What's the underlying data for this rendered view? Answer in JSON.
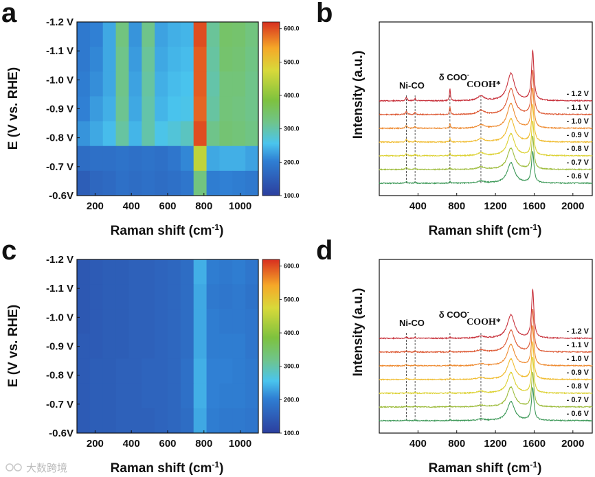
{
  "watermark": "大数跨境",
  "panels": [
    {
      "id": "a",
      "label": "a",
      "chart_data": {
        "type": "heatmap",
        "xlabel": "Raman shift (cm-1)",
        "ylabel": "E (V vs. RHE)",
        "xlim": [
          100,
          1100
        ],
        "x_ticks": [
          200,
          400,
          600,
          800,
          1000
        ],
        "y_ticks": [
          "-1.2 V",
          "-1.1 V",
          "-1.0 V",
          "-0.9 V",
          "-0.8 V",
          "-0.7 V",
          "-0.6V"
        ],
        "colorbar_range": [
          100,
          620
        ],
        "colorbar_ticks": [
          "600.0",
          "500.0",
          "400.0",
          "300.0",
          "200.0",
          "100.0"
        ],
        "potentials": [
          -1.2,
          -1.1,
          -1.0,
          -0.9,
          -0.8,
          -0.7,
          -0.6
        ],
        "intensity_rows": [
          [
            195,
            205,
            235,
            330,
            220,
            320,
            230,
            240,
            245,
            600,
            310,
            350,
            345,
            330
          ],
          [
            195,
            210,
            235,
            320,
            225,
            310,
            235,
            245,
            250,
            590,
            305,
            345,
            340,
            325
          ],
          [
            200,
            215,
            235,
            320,
            230,
            305,
            240,
            250,
            255,
            590,
            300,
            335,
            335,
            320
          ],
          [
            205,
            225,
            240,
            315,
            235,
            300,
            245,
            255,
            260,
            585,
            305,
            335,
            330,
            320
          ],
          [
            220,
            235,
            250,
            305,
            245,
            300,
            260,
            270,
            285,
            600,
            320,
            340,
            335,
            325
          ],
          [
            175,
            180,
            180,
            185,
            180,
            185,
            180,
            190,
            210,
            450,
            235,
            240,
            240,
            230
          ],
          [
            150,
            165,
            170,
            180,
            175,
            180,
            175,
            180,
            190,
            330,
            200,
            205,
            200,
            195
          ]
        ]
      }
    },
    {
      "id": "b",
      "label": "b",
      "chart_data": {
        "type": "line",
        "xlabel": "Raman shift (cm-1)",
        "ylabel": "Intensity (a.u.)",
        "xlim": [
          0,
          2200
        ],
        "x_ticks": [
          400,
          800,
          1200,
          1600,
          2000
        ],
        "series": [
          {
            "name": "- 1.2 V",
            "color": "#c8323c",
            "offset": 6,
            "peaks": [
              [
                280,
                0.25
              ],
              [
                370,
                0.15
              ],
              [
                730,
                0.9
              ],
              [
                1050,
                0.35
              ],
              [
                1360,
                2.0
              ],
              [
                1585,
                3.6
              ]
            ]
          },
          {
            "name": "- 1.1 V",
            "color": "#dd5a35",
            "offset": 5,
            "peaks": [
              [
                280,
                0.22
              ],
              [
                370,
                0.13
              ],
              [
                730,
                0.55
              ],
              [
                1050,
                0.3
              ],
              [
                1360,
                1.9
              ],
              [
                1585,
                3.2
              ]
            ]
          },
          {
            "name": "- 1.0 V",
            "color": "#ee8a30",
            "offset": 4,
            "peaks": [
              [
                280,
                0.2
              ],
              [
                370,
                0.12
              ],
              [
                730,
                0.35
              ],
              [
                1050,
                0.25
              ],
              [
                1360,
                1.8
              ],
              [
                1585,
                2.9
              ]
            ]
          },
          {
            "name": "- 0.9 V",
            "color": "#f0bc30",
            "offset": 3,
            "peaks": [
              [
                280,
                0.18
              ],
              [
                370,
                0.1
              ],
              [
                730,
                0.25
              ],
              [
                1050,
                0.22
              ],
              [
                1360,
                1.7
              ],
              [
                1585,
                2.7
              ]
            ]
          },
          {
            "name": "- 0.8 V",
            "color": "#dcd132",
            "offset": 2,
            "peaks": [
              [
                280,
                0.16
              ],
              [
                370,
                0.1
              ],
              [
                730,
                0.2
              ],
              [
                1050,
                0.2
              ],
              [
                1360,
                1.6
              ],
              [
                1585,
                2.5
              ]
            ]
          },
          {
            "name": "- 0.7 V",
            "color": "#9dbc3c",
            "offset": 1,
            "peaks": [
              [
                280,
                0.14
              ],
              [
                370,
                0.08
              ],
              [
                730,
                0.15
              ],
              [
                1050,
                0.18
              ],
              [
                1360,
                1.55
              ],
              [
                1585,
                2.4
              ]
            ]
          },
          {
            "name": "- 0.6 V",
            "color": "#3f9a5a",
            "offset": 0,
            "peaks": [
              [
                280,
                0.12
              ],
              [
                370,
                0.07
              ],
              [
                730,
                0.12
              ],
              [
                1050,
                0.15
              ],
              [
                1360,
                1.5
              ],
              [
                1585,
                2.3
              ]
            ]
          }
        ],
        "annotations": [
          {
            "text": "Ni-CO",
            "x": 280
          },
          {
            "text": "δ COO",
            "sup": "-",
            "x": 730
          },
          {
            "text": "COOH*",
            "x": 1050
          }
        ]
      }
    },
    {
      "id": "c",
      "label": "c",
      "chart_data": {
        "type": "heatmap",
        "xlabel": "Raman shift (cm-1)",
        "ylabel": "E (V vs. RHE)",
        "xlim": [
          100,
          1100
        ],
        "x_ticks": [
          200,
          400,
          600,
          800,
          1000
        ],
        "y_ticks": [
          "-1.2 V",
          "-1.1 V",
          "-1.0 V",
          "-0.9 V",
          "-0.8 V",
          "-0.7 V",
          "-0.6V"
        ],
        "colorbar_range": [
          100,
          620
        ],
        "colorbar_ticks": [
          "600.0",
          "500.0",
          "400.0",
          "300.0",
          "200.0",
          "100.0"
        ],
        "potentials": [
          -1.2,
          -1.1,
          -1.0,
          -0.9,
          -0.8,
          -0.7,
          -0.6
        ],
        "intensity_rows": [
          [
            140,
            145,
            150,
            150,
            155,
            155,
            160,
            165,
            175,
            240,
            200,
            195,
            200,
            190
          ],
          [
            140,
            145,
            150,
            150,
            155,
            155,
            160,
            165,
            175,
            235,
            195,
            190,
            195,
            185
          ],
          [
            140,
            145,
            150,
            150,
            155,
            155,
            160,
            165,
            175,
            235,
            200,
            195,
            195,
            190
          ],
          [
            145,
            145,
            150,
            150,
            155,
            155,
            160,
            165,
            175,
            235,
            200,
            200,
            200,
            190
          ],
          [
            145,
            150,
            150,
            155,
            155,
            160,
            160,
            165,
            180,
            240,
            205,
            205,
            200,
            195
          ],
          [
            145,
            150,
            150,
            155,
            155,
            160,
            160,
            165,
            180,
            240,
            205,
            200,
            200,
            195
          ],
          [
            145,
            150,
            150,
            155,
            155,
            155,
            160,
            165,
            175,
            235,
            200,
            195,
            195,
            190
          ]
        ]
      }
    },
    {
      "id": "d",
      "label": "d",
      "chart_data": {
        "type": "line",
        "xlabel": "Raman shift (cm-1)",
        "ylabel": "Intensity (a.u.)",
        "xlim": [
          0,
          2200
        ],
        "x_ticks": [
          400,
          800,
          1200,
          1600,
          2000
        ],
        "series": [
          {
            "name": "- 1.2 V",
            "color": "#c8323c",
            "offset": 6,
            "peaks": [
              [
                280,
                0.08
              ],
              [
                370,
                0.06
              ],
              [
                730,
                0.1
              ],
              [
                1050,
                0.15
              ],
              [
                1360,
                1.7
              ],
              [
                1585,
                3.5
              ]
            ]
          },
          {
            "name": "- 1.1 V",
            "color": "#dd5a35",
            "offset": 5,
            "peaks": [
              [
                280,
                0.08
              ],
              [
                370,
                0.06
              ],
              [
                730,
                0.1
              ],
              [
                1050,
                0.15
              ],
              [
                1360,
                1.6
              ],
              [
                1585,
                3.1
              ]
            ]
          },
          {
            "name": "- 1.0 V",
            "color": "#ee8a30",
            "offset": 4,
            "peaks": [
              [
                280,
                0.07
              ],
              [
                370,
                0.05
              ],
              [
                730,
                0.09
              ],
              [
                1050,
                0.14
              ],
              [
                1360,
                1.55
              ],
              [
                1585,
                2.9
              ]
            ]
          },
          {
            "name": "- 0.9 V",
            "color": "#f0bc30",
            "offset": 3,
            "peaks": [
              [
                280,
                0.07
              ],
              [
                370,
                0.05
              ],
              [
                730,
                0.09
              ],
              [
                1050,
                0.14
              ],
              [
                1360,
                1.5
              ],
              [
                1585,
                2.7
              ]
            ]
          },
          {
            "name": "- 0.8 V",
            "color": "#dcd132",
            "offset": 2,
            "peaks": [
              [
                280,
                0.06
              ],
              [
                370,
                0.05
              ],
              [
                730,
                0.08
              ],
              [
                1050,
                0.13
              ],
              [
                1360,
                1.5
              ],
              [
                1585,
                2.6
              ]
            ]
          },
          {
            "name": "- 0.7 V",
            "color": "#9dbc3c",
            "offset": 1,
            "peaks": [
              [
                280,
                0.06
              ],
              [
                370,
                0.04
              ],
              [
                730,
                0.08
              ],
              [
                1050,
                0.12
              ],
              [
                1360,
                1.45
              ],
              [
                1585,
                2.5
              ]
            ]
          },
          {
            "name": "- 0.6 V",
            "color": "#3f9a5a",
            "offset": 0,
            "peaks": [
              [
                280,
                0.05
              ],
              [
                370,
                0.04
              ],
              [
                730,
                0.07
              ],
              [
                1050,
                0.12
              ],
              [
                1360,
                1.4
              ],
              [
                1585,
                2.4
              ]
            ]
          }
        ],
        "annotations": [
          {
            "text": "Ni-CO",
            "x": 280
          },
          {
            "text": "δ COO",
            "sup": "-",
            "x": 730
          },
          {
            "text": "COOH*",
            "x": 1050
          }
        ]
      }
    }
  ]
}
